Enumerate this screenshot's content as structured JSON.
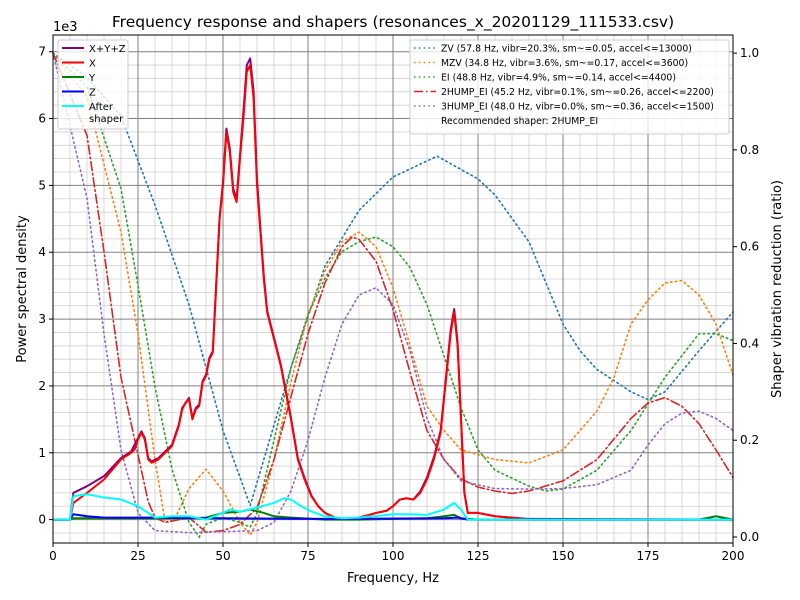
{
  "chart_data": {
    "type": "line",
    "title": "Frequency response and shapers (resonances_x_20201129_111533.csv)",
    "xlabel": "Frequency, Hz",
    "ylabel": "Power spectral density",
    "ylabel_right": "Shaper vibration reduction (ratio)",
    "y_multiplier_label": "1e3",
    "xlim": [
      0,
      200
    ],
    "ylim": [
      -0.35,
      7.25
    ],
    "ylim_right": [
      -0.0125,
      1.0375
    ],
    "x_ticks": [
      0,
      25,
      50,
      75,
      100,
      125,
      150,
      175,
      200
    ],
    "y_ticks": [
      0,
      1,
      2,
      3,
      4,
      5,
      6,
      7
    ],
    "y_ticks_right": [
      0.0,
      0.2,
      0.4,
      0.6,
      0.8,
      1.0
    ],
    "grid": true,
    "legend_left_placement": "top-left",
    "legend_right_placement": "top-right",
    "psd_series": [
      {
        "name": "X+Y+Z",
        "color": "#800080",
        "x": [
          0,
          5,
          6,
          10,
          15,
          20,
          23,
          25,
          26,
          27,
          28,
          29,
          31,
          33,
          35,
          37,
          38,
          40,
          41,
          42,
          43,
          44,
          45,
          46,
          47,
          48,
          49,
          50,
          51,
          52,
          53,
          54,
          55,
          56,
          57,
          58,
          59,
          60,
          61,
          62,
          63,
          65,
          67,
          70,
          72,
          74,
          76,
          78,
          80,
          83,
          87,
          90,
          93,
          95,
          98,
          100,
          102,
          104,
          106,
          108,
          110,
          112,
          114,
          115,
          116,
          117,
          118,
          119,
          120,
          121,
          122,
          125,
          130,
          140,
          200
        ],
        "y": [
          0,
          0,
          0.4,
          0.5,
          0.65,
          0.92,
          1.02,
          1.22,
          1.32,
          1.22,
          0.92,
          0.87,
          0.92,
          1.02,
          1.12,
          1.42,
          1.67,
          1.82,
          1.52,
          1.67,
          1.72,
          2.07,
          2.17,
          2.42,
          2.52,
          3.52,
          4.52,
          5.05,
          5.85,
          5.55,
          4.95,
          4.8,
          5.45,
          6.1,
          6.8,
          6.9,
          6.4,
          5.1,
          4.35,
          3.65,
          3.12,
          2.72,
          2.32,
          1.52,
          0.92,
          0.62,
          0.36,
          0.2,
          0.1,
          0.03,
          0.01,
          0.03,
          0.07,
          0.1,
          0.13,
          0.2,
          0.3,
          0.32,
          0.3,
          0.42,
          0.63,
          0.93,
          1.33,
          1.83,
          2.35,
          2.85,
          3.15,
          2.65,
          1.52,
          0.4,
          0.1,
          0.1,
          0.05,
          0.01,
          0
        ]
      },
      {
        "name": "X",
        "color": "#ff0000",
        "x": [
          0,
          5,
          6,
          10,
          15,
          20,
          23,
          24,
          25,
          26,
          27,
          28,
          29,
          31,
          33,
          35,
          37,
          38,
          39,
          40,
          41,
          42,
          43,
          44,
          45,
          46,
          47,
          48,
          49,
          50,
          51,
          52,
          53,
          54,
          55,
          56,
          57,
          58,
          59,
          60,
          61,
          62,
          63,
          65,
          67,
          70,
          72,
          74,
          76,
          78,
          80,
          83,
          87,
          90,
          93,
          95,
          98,
          100,
          102,
          104,
          106,
          108,
          110,
          112,
          114,
          115,
          116,
          117,
          118,
          119,
          120,
          121,
          122,
          125,
          130,
          140,
          200
        ],
        "y": [
          0,
          0,
          0.25,
          0.4,
          0.6,
          0.9,
          1.0,
          1.05,
          1.2,
          1.3,
          1.2,
          0.9,
          0.85,
          0.9,
          1.0,
          1.1,
          1.4,
          1.65,
          1.75,
          1.8,
          1.5,
          1.65,
          1.7,
          2.05,
          2.15,
          2.4,
          2.5,
          3.5,
          4.5,
          5.0,
          5.8,
          5.5,
          4.9,
          4.75,
          5.4,
          6.0,
          6.7,
          6.8,
          6.3,
          5.0,
          4.3,
          3.6,
          3.1,
          2.7,
          2.3,
          1.5,
          0.9,
          0.6,
          0.35,
          0.2,
          0.1,
          0.03,
          0.0,
          0.03,
          0.07,
          0.1,
          0.13,
          0.2,
          0.3,
          0.32,
          0.3,
          0.4,
          0.6,
          0.9,
          1.3,
          1.8,
          2.3,
          2.8,
          3.1,
          2.6,
          1.5,
          0.4,
          0.1,
          0.1,
          0.05,
          0.0,
          0.0
        ]
      },
      {
        "name": "Y",
        "color": "#008000",
        "x": [
          0,
          5,
          6,
          10,
          20,
          30,
          40,
          45,
          50,
          55,
          58,
          62,
          65,
          70,
          80,
          90,
          110,
          115,
          118,
          120,
          125,
          190,
          195,
          200
        ],
        "y": [
          0,
          0,
          0.02,
          0.02,
          0.02,
          0.02,
          0.02,
          0.03,
          0.1,
          0.12,
          0.15,
          0.1,
          0.05,
          0.03,
          0.0,
          0.0,
          0.02,
          0.05,
          0.07,
          0.02,
          0.0,
          0.0,
          0.05,
          0.0
        ]
      },
      {
        "name": "Z",
        "color": "#0000ff",
        "x": [
          0,
          5,
          6,
          10,
          15,
          30,
          50,
          80,
          115,
          119,
          122,
          200
        ],
        "y": [
          0,
          0,
          0.08,
          0.05,
          0.03,
          0.03,
          0.02,
          0.01,
          0.02,
          0.03,
          0.0,
          0.0
        ]
      },
      {
        "name": "After\nshaper",
        "color": "#00ffff",
        "x": [
          0,
          5,
          6,
          10,
          15,
          20,
          25,
          28,
          30,
          35,
          40,
          45,
          50,
          52,
          55,
          60,
          65,
          68,
          70,
          73,
          76,
          80,
          85,
          90,
          100,
          105,
          110,
          115,
          118,
          120,
          122,
          200
        ],
        "y": [
          0,
          0,
          0.35,
          0.38,
          0.33,
          0.3,
          0.2,
          0.1,
          0.03,
          0.05,
          0.05,
          0.0,
          0.1,
          0.15,
          0.12,
          0.18,
          0.25,
          0.32,
          0.3,
          0.2,
          0.12,
          0.05,
          0.02,
          0.03,
          0.08,
          0.08,
          0.07,
          0.15,
          0.25,
          0.15,
          0.0,
          0.0
        ]
      }
    ],
    "shaper_series": [
      {
        "name": "ZV (57.8 Hz, vibr=20.3%, sm~=0.05, accel<=13000)",
        "color": "#1f77b4",
        "style": "dotted",
        "x": [
          0,
          10,
          20,
          30,
          40,
          50,
          58,
          70,
          80,
          90,
          100,
          113,
          125,
          130,
          140,
          150,
          155,
          160,
          170,
          175,
          180,
          190,
          200
        ],
        "y": [
          1.0,
          0.95,
          0.87,
          0.686,
          0.48,
          0.22,
          0.065,
          0.35,
          0.56,
          0.675,
          0.744,
          0.787,
          0.74,
          0.707,
          0.61,
          0.44,
          0.385,
          0.346,
          0.3,
          0.284,
          0.3,
          0.385,
          0.465
        ]
      },
      {
        "name": "MZV (34.8 Hz, vibr=3.6%, sm~=0.17, accel<=3600)",
        "color": "#ff7f0e",
        "style": "dotted",
        "x": [
          0,
          10,
          20,
          25,
          30,
          33,
          36,
          40,
          45,
          50,
          55,
          58,
          60,
          65,
          70,
          75,
          80,
          85,
          90,
          95,
          100,
          105,
          110,
          115,
          120,
          125,
          130,
          140,
          150,
          160,
          165,
          170,
          175,
          180,
          185,
          190,
          195,
          200
        ],
        "y": [
          1.0,
          0.91,
          0.63,
          0.42,
          0.16,
          0.03,
          0.04,
          0.1,
          0.14,
          0.095,
          0.03,
          0.004,
          0.03,
          0.16,
          0.32,
          0.46,
          0.55,
          0.61,
          0.63,
          0.6,
          0.515,
          0.396,
          0.27,
          0.22,
          0.18,
          0.17,
          0.16,
          0.153,
          0.18,
          0.26,
          0.33,
          0.44,
          0.49,
          0.525,
          0.53,
          0.5,
          0.44,
          0.335
        ]
      },
      {
        "name": "EI (48.8 Hz, vibr=4.9%, sm~=0.14, accel<=4400)",
        "color": "#2ca02c",
        "style": "dotted",
        "x": [
          0,
          10,
          20,
          25,
          30,
          35,
          40,
          43,
          45,
          50,
          55,
          58,
          60,
          65,
          70,
          75,
          80,
          85,
          90,
          95,
          100,
          105,
          110,
          115,
          120,
          125,
          130,
          140,
          145,
          150,
          160,
          170,
          180,
          190,
          195,
          200
        ],
        "y": [
          1.0,
          0.93,
          0.72,
          0.52,
          0.31,
          0.14,
          0.03,
          0.0,
          0.026,
          0.04,
          0.03,
          0.02,
          0.05,
          0.2,
          0.35,
          0.46,
          0.535,
          0.59,
          0.61,
          0.62,
          0.6,
          0.557,
          0.48,
          0.374,
          0.267,
          0.18,
          0.138,
          0.105,
          0.095,
          0.099,
          0.138,
          0.22,
          0.33,
          0.42,
          0.42,
          0.406
        ]
      },
      {
        "name": "2HUMP_EI (45.2 Hz, vibr=0.1%, sm~=0.26, accel<=2200)",
        "color": "#d62728",
        "style": "dashdot",
        "x": [
          0,
          10,
          15,
          20,
          25,
          28,
          30,
          33,
          40,
          45,
          50,
          55,
          60,
          65,
          70,
          75,
          80,
          85,
          88,
          90,
          95,
          100,
          105,
          110,
          115,
          120,
          125,
          130,
          135,
          140,
          150,
          160,
          170,
          175,
          180,
          185,
          190,
          195,
          200
        ],
        "y": [
          1.0,
          0.83,
          0.59,
          0.33,
          0.17,
          0.073,
          0.04,
          0.03,
          0.04,
          0.01,
          0.013,
          0.026,
          0.06,
          0.16,
          0.29,
          0.42,
          0.525,
          0.6,
          0.62,
          0.615,
          0.57,
          0.47,
          0.34,
          0.22,
          0.16,
          0.12,
          0.103,
          0.095,
          0.09,
          0.095,
          0.116,
          0.16,
          0.245,
          0.277,
          0.288,
          0.27,
          0.234,
          0.18,
          0.123
        ]
      },
      {
        "name": "3HUMP_EI (48.0 Hz, vibr=0.0%, sm~=0.36, accel<=1500)",
        "color": "#9467bd",
        "style": "dotted",
        "x": [
          0,
          10,
          15,
          20,
          25,
          30,
          40,
          60,
          65,
          70,
          75,
          80,
          85,
          90,
          95,
          100,
          105,
          110,
          115,
          120,
          130,
          140,
          150,
          160,
          170,
          175,
          180,
          185,
          190,
          195,
          200
        ],
        "y": [
          1.0,
          0.7,
          0.42,
          0.18,
          0.05,
          0.013,
          0.009,
          0.013,
          0.03,
          0.095,
          0.2,
          0.33,
          0.44,
          0.5,
          0.515,
          0.48,
          0.385,
          0.245,
          0.16,
          0.116,
          0.1,
          0.099,
          0.1,
          0.108,
          0.138,
          0.19,
          0.234,
          0.256,
          0.26,
          0.245,
          0.22
        ]
      }
    ],
    "recommended_text": "Recommended shaper: 2HUMP_EI"
  }
}
